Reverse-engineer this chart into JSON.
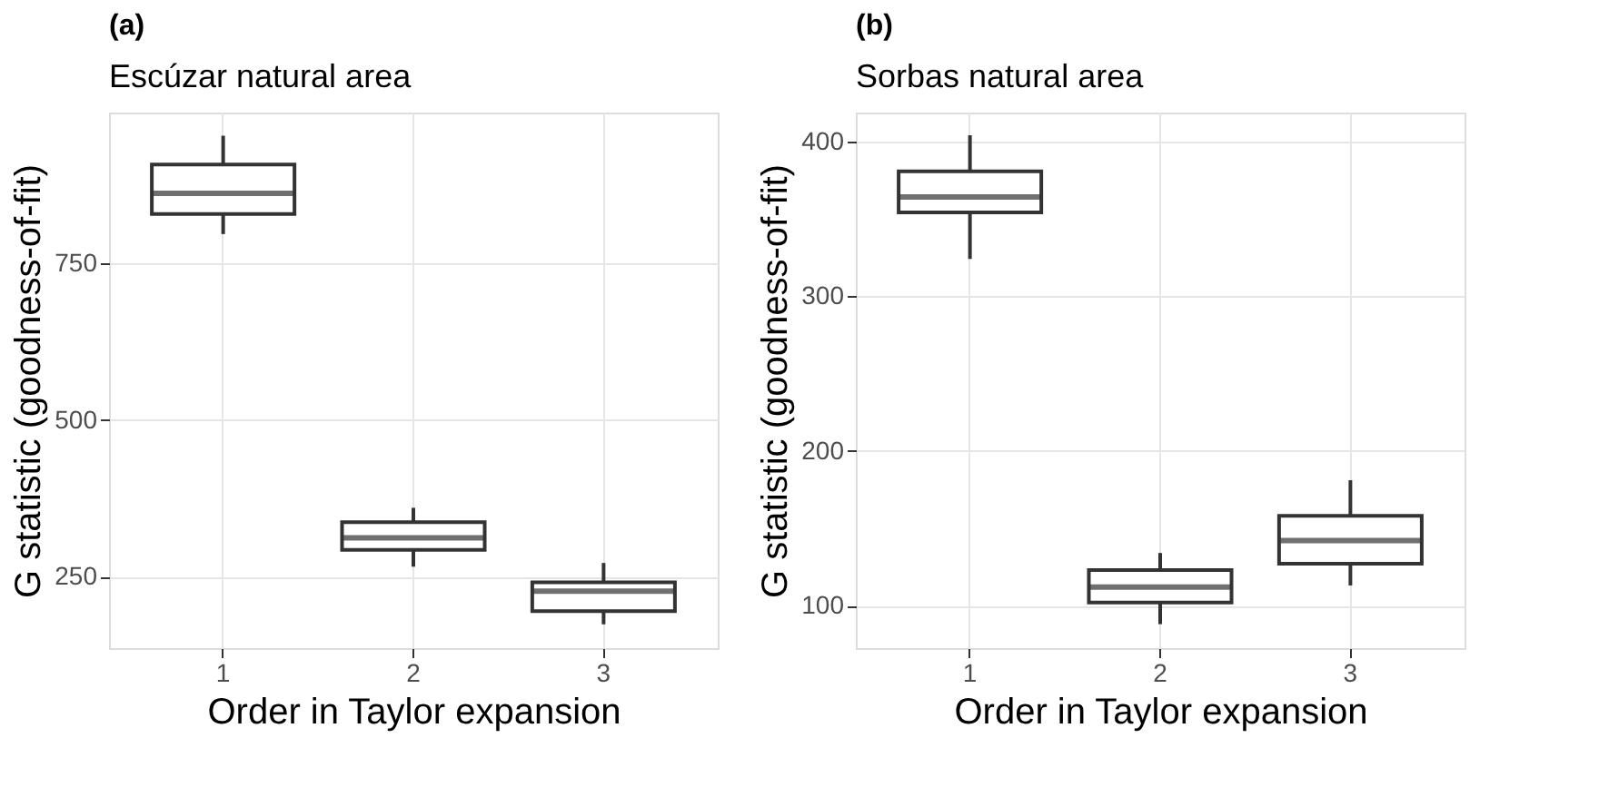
{
  "chart_data": [
    {
      "type": "box",
      "title": "(a)",
      "subtitle": "Escúzar natural area",
      "xlabel": "Order in Taylor expansion",
      "ylabel": "G statistic (goodness-of-fit)",
      "categories": [
        "1",
        "2",
        "3"
      ],
      "ylim": [
        136,
        991
      ],
      "yticks": [
        250,
        500,
        750
      ],
      "grid": true,
      "series": [
        {
          "color": "#333333",
          "boxes": [
            {
              "low": 797,
              "q1": 829,
              "median": 862,
              "q3": 908,
              "high": 954
            },
            {
              "low": 266,
              "q1": 293,
              "median": 312,
              "q3": 337,
              "high": 360
            },
            {
              "low": 174,
              "q1": 195,
              "median": 227,
              "q3": 241,
              "high": 272
            }
          ]
        }
      ]
    },
    {
      "type": "box",
      "title": "(b)",
      "subtitle": "Sorbas natural area",
      "xlabel": "Order in Taylor expansion",
      "ylabel": "G statistic (goodness-of-fit)",
      "categories": [
        "1",
        "2",
        "3"
      ],
      "ylim": [
        72.5,
        418.6
      ],
      "yticks": [
        100,
        200,
        300,
        400
      ],
      "grid": true,
      "series": [
        {
          "color": "#333333",
          "boxes": [
            {
              "low": 324,
              "q1": 354,
              "median": 364,
              "q3": 380.6,
              "high": 404
            },
            {
              "low": 88,
              "q1": 102,
              "median": 112,
              "q3": 123,
              "high": 134
            },
            {
              "low": 113,
              "q1": 127,
              "median": 142,
              "q3": 158,
              "high": 181
            }
          ]
        }
      ]
    }
  ]
}
